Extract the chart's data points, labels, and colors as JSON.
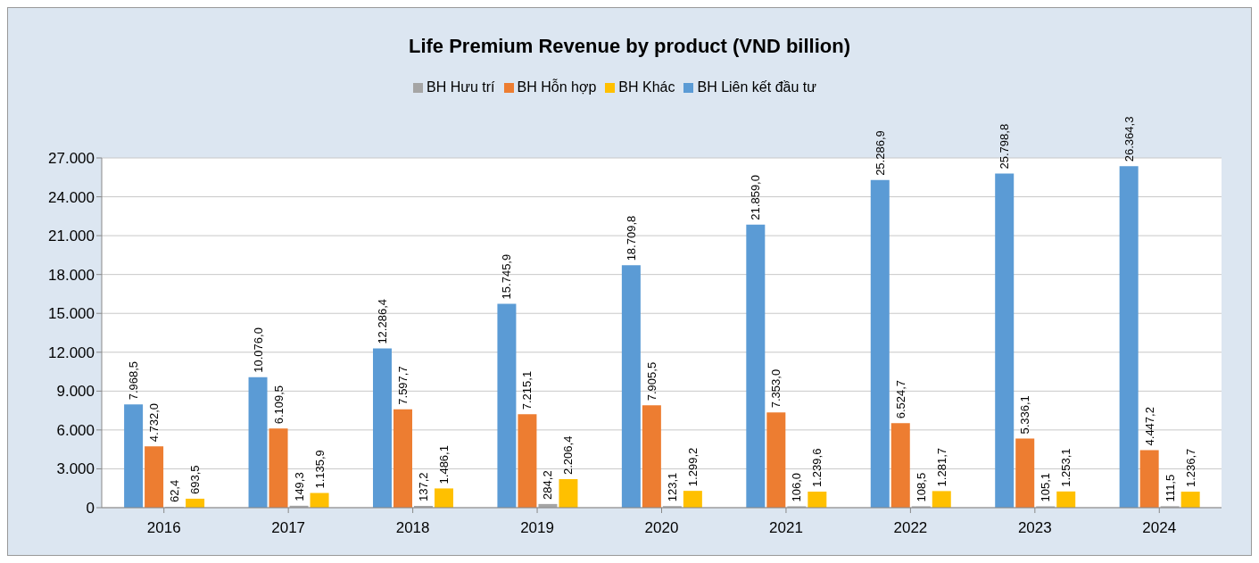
{
  "chart_data": {
    "type": "bar",
    "title": "Life Premium Revenue by product (VND billion)",
    "categories": [
      "2016",
      "2017",
      "2018",
      "2019",
      "2020",
      "2021",
      "2022",
      "2023",
      "2024"
    ],
    "series": [
      {
        "name": "BH Liên kết đầu tư",
        "color": "#5b9bd5",
        "values": [
          7968.5,
          10076.0,
          12286.4,
          15745.9,
          18709.8,
          21859.0,
          25286.9,
          25798.8,
          26364.3
        ],
        "value_labels": [
          "7.968,5",
          "10.076,0",
          "12.286,4",
          "15.745,9",
          "18.709,8",
          "21.859,0",
          "25.286,9",
          "25.798,8",
          "26.364,3"
        ]
      },
      {
        "name": "BH Hỗn hợp",
        "color": "#ed7d31",
        "values": [
          4732.0,
          6109.5,
          7597.7,
          7215.1,
          7905.5,
          7353.0,
          6524.7,
          5336.1,
          4447.2
        ],
        "value_labels": [
          "4.732,0",
          "6.109,5",
          "7.597,7",
          "7.215,1",
          "7.905,5",
          "7.353,0",
          "6.524,7",
          "5.336,1",
          "4.447,2"
        ]
      },
      {
        "name": "BH Hưu trí",
        "color": "#a5a5a5",
        "values": [
          62.4,
          149.3,
          137.2,
          284.2,
          123.1,
          106.0,
          108.5,
          105.1,
          111.5
        ],
        "value_labels": [
          "62,4",
          "149,3",
          "137,2",
          "284,2",
          "123,1",
          "106,0",
          "108,5",
          "105,1",
          "111,5"
        ]
      },
      {
        "name": "BH Khác",
        "color": "#ffc000",
        "values": [
          693.5,
          1135.9,
          1486.1,
          2206.4,
          1299.2,
          1239.6,
          1281.7,
          1253.1,
          1236.7
        ],
        "value_labels": [
          "693,5",
          "1.135,9",
          "1.486,1",
          "2.206,4",
          "1.299,2",
          "1.239,6",
          "1.281,7",
          "1.253,1",
          "1.236,7"
        ]
      }
    ],
    "ylim": [
      0,
      27000
    ],
    "yticks": [
      0,
      {
        "value": 3000,
        "label": "3.000"
      },
      {
        "value": 6000,
        "label": "6.000"
      },
      {
        "value": 9000,
        "label": "9.000"
      },
      {
        "value": 12000,
        "label": "12.000"
      },
      {
        "value": 15000,
        "label": "15.000"
      },
      {
        "value": 18000,
        "label": "18.000"
      },
      {
        "value": 21000,
        "label": "21.000"
      },
      {
        "value": 24000,
        "label": "24.000"
      },
      {
        "value": 27000,
        "label": "27.000"
      }
    ],
    "grid": "y",
    "legend": "top"
  }
}
